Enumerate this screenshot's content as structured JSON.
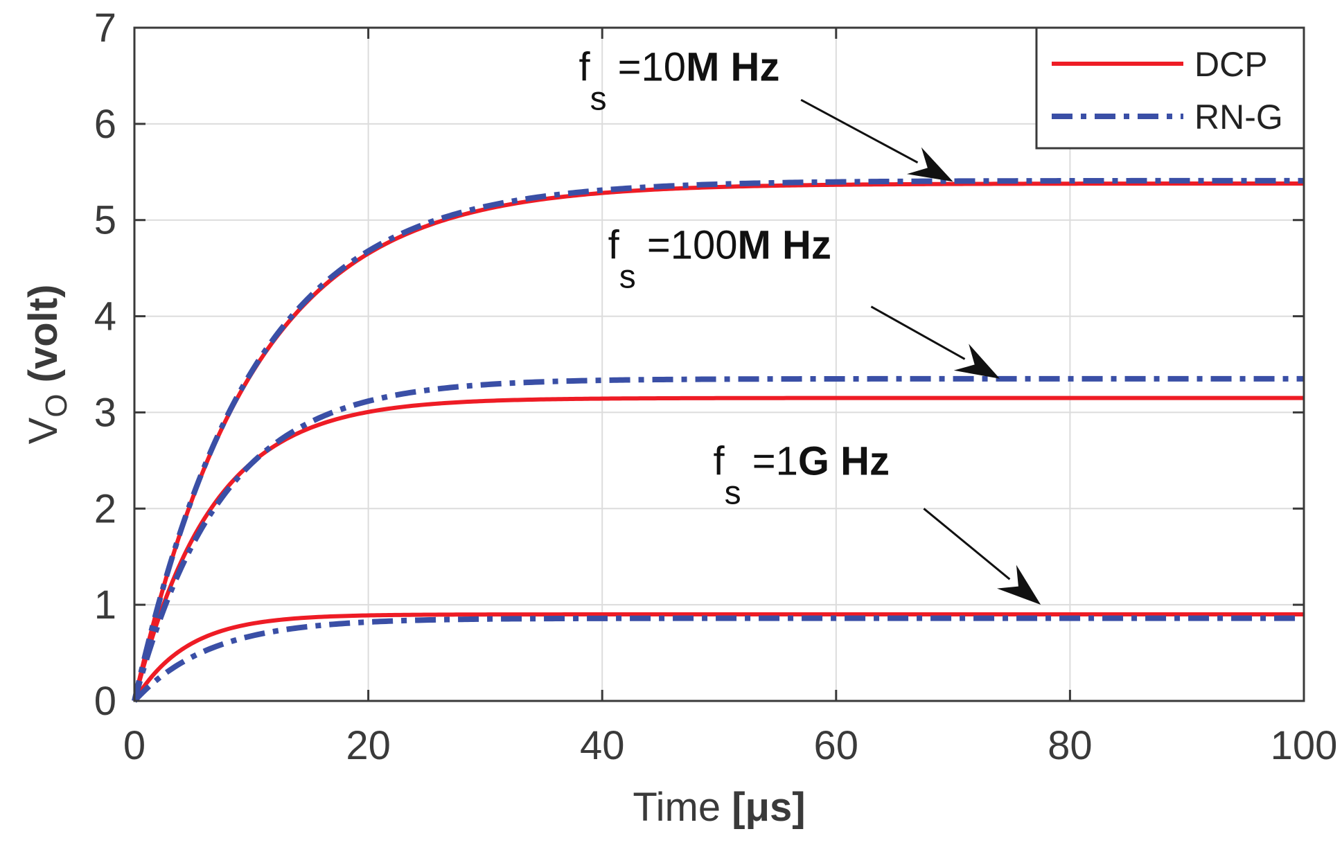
{
  "chart_data": {
    "type": "line",
    "xlabel": {
      "text": "Time ",
      "unit": "[μs]"
    },
    "ylabel": {
      "main": "V",
      "sub": "O",
      "rest": " (volt)"
    },
    "xlim": [
      0,
      100
    ],
    "ylim": [
      0,
      7
    ],
    "xticks": [
      0,
      20,
      40,
      60,
      80,
      100
    ],
    "yticks": [
      0,
      1,
      2,
      3,
      4,
      5,
      6,
      7
    ],
    "grid": true,
    "legend": {
      "position": "top-right",
      "entries": [
        {
          "label": "DCP",
          "color": "#ee1c25",
          "style": "solid"
        },
        {
          "label": "RN-G",
          "color": "#3a4fa6",
          "style": "dashdot"
        }
      ]
    },
    "series": [
      {
        "name": "DCP",
        "case": "10MHz",
        "model": "exponential",
        "final": 5.38,
        "tau_us": 10.0,
        "color": "#ee1c25",
        "style": "solid"
      },
      {
        "name": "RN-G",
        "case": "10MHz",
        "model": "exponential",
        "final": 5.41,
        "tau_us": 10.0,
        "color": "#3a4fa6",
        "style": "dashdot"
      },
      {
        "name": "DCP",
        "case": "100MHz",
        "model": "exponential",
        "final": 3.15,
        "tau_us": 6.5,
        "color": "#ee1c25",
        "style": "solid"
      },
      {
        "name": "RN-G",
        "case": "100MHz",
        "model": "exponential",
        "final": 3.35,
        "tau_us": 7.5,
        "color": "#3a4fa6",
        "style": "dashdot"
      },
      {
        "name": "DCP",
        "case": "1GHz",
        "model": "exponential",
        "final": 0.9,
        "tau_us": 4.5,
        "color": "#ee1c25",
        "style": "solid"
      },
      {
        "name": "RN-G",
        "case": "1GHz",
        "model": "exponential",
        "final": 0.86,
        "tau_us": 6.5,
        "color": "#3a4fa6",
        "style": "dashdot"
      }
    ],
    "annotations": [
      {
        "prefix": "f",
        "sub": "s",
        "eq": "  =10",
        "bold": "M Hz",
        "text_at": [
          38,
          6.45
        ],
        "arrow_from": [
          57,
          6.25
        ],
        "arrow_to": [
          70,
          5.4
        ]
      },
      {
        "prefix": "f",
        "sub": "s",
        "eq": "  =100",
        "bold": "M Hz",
        "text_at": [
          40.5,
          4.6
        ],
        "arrow_from": [
          63,
          4.1
        ],
        "arrow_to": [
          74,
          3.35
        ]
      },
      {
        "prefix": "f",
        "sub": "s",
        "eq": "  =1",
        "bold": "G Hz",
        "text_at": [
          49.5,
          2.35
        ],
        "arrow_from": [
          67.5,
          2.0
        ],
        "arrow_to": [
          77.5,
          1.0
        ]
      }
    ]
  }
}
